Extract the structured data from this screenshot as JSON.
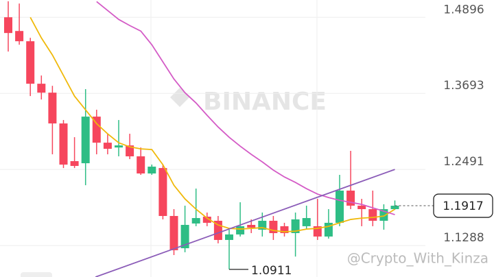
{
  "chart_data": {
    "type": "candlestick",
    "watermark": "BINANCE",
    "credit": "@Crypto_With_Kinza",
    "ylim": [
      1.079,
      1.517
    ],
    "yticks": [
      1.1288,
      1.2491,
      1.3693,
      1.4896
    ],
    "grid": true,
    "up_color": "#2ebd85",
    "down_color": "#f6465d",
    "open": [
      1.4897,
      1.468,
      1.4518,
      1.3846,
      1.3705,
      1.3218,
      1.2622,
      1.2589,
      1.3326,
      1.2914,
      1.2838,
      1.2871,
      1.2698,
      1.2427,
      1.2513,
      1.1755,
      1.1245,
      1.1636,
      1.1744,
      1.1679,
      1.1376,
      1.1463,
      1.1614,
      1.1538,
      1.1679,
      1.1593,
      1.1484,
      1.1593,
      1.1593,
      1.143,
      1.1647,
      1.2156,
      1.1918,
      1.1863,
      1.1679,
      1.1863
    ],
    "high": [
      1.515,
      1.5114,
      1.4572,
      1.3976,
      1.3813,
      1.3272,
      1.3001,
      1.376,
      1.3435,
      1.3055,
      1.3272,
      1.3055,
      1.2838,
      1.2568,
      1.2568,
      1.1863,
      1.1918,
      1.2188,
      1.1809,
      1.1755,
      1.1538,
      1.1972,
      1.1701,
      1.1809,
      1.1755,
      1.1647,
      1.1809,
      1.1918,
      1.2026,
      1.1863,
      1.2405,
      1.2785,
      1.2026,
      1.2156,
      1.194,
      1.2
    ],
    "low": [
      1.4355,
      1.4463,
      1.3651,
      1.3597,
      1.273,
      1.2513,
      1.2513,
      1.2242,
      1.273,
      1.273,
      1.2698,
      1.2654,
      1.2405,
      1.2405,
      1.1701,
      1.1137,
      1.1181,
      1.1593,
      1.1593,
      1.1322,
      1.0911,
      1.143,
      1.1484,
      1.143,
      1.1376,
      1.143,
      1.1113,
      1.1538,
      1.1376,
      1.1397,
      1.1593,
      1.1863,
      1.1593,
      1.1593,
      1.1538,
      1.1852
    ],
    "close": [
      1.4648,
      1.4518,
      1.3846,
      1.3705,
      1.3218,
      1.2567,
      1.2546,
      1.3326,
      1.2914,
      1.2817,
      1.2871,
      1.2698,
      1.2427,
      1.2535,
      1.1755,
      1.1213,
      1.1614,
      1.1722,
      1.1647,
      1.1376,
      1.1463,
      1.1593,
      1.1571,
      1.1679,
      1.1484,
      1.1484,
      1.1701,
      1.1722,
      1.143,
      1.1647,
      1.2156,
      1.1918,
      1.1863,
      1.1679,
      1.1863,
      1.1917
    ],
    "series": [
      {
        "color": "#f0b90b",
        "values": [
          null,
          null,
          1.4896,
          1.4571,
          1.43,
          1.3975,
          1.365,
          1.3433,
          1.3216,
          1.3054,
          1.2913,
          1.2848,
          1.2816,
          1.2805,
          1.2566,
          1.2241,
          1.2025,
          1.1862,
          1.1721,
          1.1613,
          1.1559,
          1.1548,
          1.1559,
          1.157,
          1.1526,
          1.1505,
          1.1515,
          1.1548,
          1.1559,
          1.1591,
          1.1646,
          1.17,
          1.1721,
          1.1732,
          1.1754,
          1.1862
        ]
      },
      {
        "color": "#d45bc6",
        "values": [
          null,
          null,
          null,
          null,
          null,
          null,
          null,
          null,
          1.5145,
          1.5004,
          1.4863,
          1.4766,
          1.4679,
          1.4462,
          1.4192,
          1.3921,
          1.3704,
          1.3542,
          1.3347,
          1.3162,
          1.3,
          1.2859,
          1.2729,
          1.261,
          1.248,
          1.2372,
          1.2285,
          1.2187,
          1.2101,
          1.2046,
          1.2003,
          1.1971,
          1.1938,
          1.1884,
          1.183,
          1.1776
        ]
      }
    ],
    "trendline": {
      "color": "#8b5cb8",
      "x": [
        7.9,
        35
      ],
      "values": [
        1.079,
        1.2491
      ]
    },
    "low_label": 1.0911,
    "low_index": 20,
    "last_price": 1.1917
  }
}
